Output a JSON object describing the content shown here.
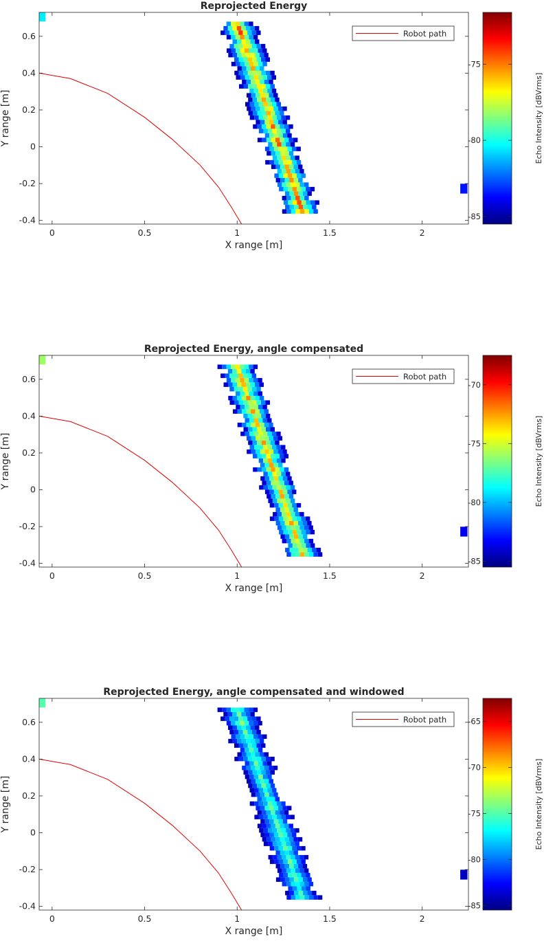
{
  "chart_data": [
    {
      "type": "heatmap",
      "title": "Reprojected Energy",
      "xlabel": "X range [m]",
      "ylabel": "Y range [m]",
      "xlim": [
        -0.07,
        2.25
      ],
      "ylim": [
        -0.42,
        0.73
      ],
      "xticks": [
        "0",
        "0.5",
        "1",
        "1.5",
        "2"
      ],
      "xtick_values": [
        0,
        0.5,
        1,
        1.5,
        2
      ],
      "yticks": [
        "-0.4",
        "-0.2",
        "0",
        "0.2",
        "0.4",
        "0.6"
      ],
      "ytick_values": [
        -0.4,
        -0.2,
        0,
        0.2,
        0.4,
        0.6
      ],
      "grid": false,
      "legend": {
        "entries": [
          "Robot path"
        ],
        "position": "top-right"
      },
      "colorbar": {
        "label": "Echo Intensity [dBVrms]",
        "range": [
          -85.5,
          -71.6
        ],
        "ticks": [
          "-75",
          "-80",
          "-85"
        ],
        "tick_values": [
          -75,
          -80,
          -85
        ]
      },
      "robot_path": {
        "x": [
          -0.07,
          0.1,
          0.3,
          0.5,
          0.65,
          0.8,
          0.9,
          0.97,
          1.03
        ],
        "y": [
          0.4,
          0.37,
          0.29,
          0.16,
          0.04,
          -0.1,
          -0.22,
          -0.33,
          -0.43
        ]
      },
      "ridge": {
        "y_top": 0.68,
        "y_bottom": -0.33,
        "x_top": 0.99,
        "x_bottom": 1.34,
        "peak": -74.0,
        "base": -85.0
      },
      "outliers": [
        {
          "x": -0.05,
          "y": 0.71,
          "value": -80.5
        },
        {
          "x": 2.23,
          "y": -0.225,
          "value": -83.5
        }
      ]
    },
    {
      "type": "heatmap",
      "title": "Reprojected Energy, angle compensated",
      "xlabel": "X range [m]",
      "ylabel": "Y range [m]",
      "xlim": [
        -0.07,
        2.25
      ],
      "ylim": [
        -0.42,
        0.73
      ],
      "xticks": [
        "0",
        "0.5",
        "1",
        "1.5",
        "2"
      ],
      "xtick_values": [
        0,
        0.5,
        1,
        1.5,
        2
      ],
      "yticks": [
        "-0.4",
        "-0.2",
        "0",
        "0.2",
        "0.4",
        "0.6"
      ],
      "ytick_values": [
        -0.4,
        -0.2,
        0,
        0.2,
        0.4,
        0.6
      ],
      "grid": false,
      "legend": {
        "entries": [
          "Robot path"
        ],
        "position": "top-right"
      },
      "colorbar": {
        "label": "Echo Intensity [dBVrms]",
        "range": [
          -85.5,
          -67.5
        ],
        "ticks": [
          "-70",
          "-75",
          "-80",
          "-85"
        ],
        "tick_values": [
          -70,
          -75,
          -80,
          -85
        ]
      },
      "robot_path": {
        "x": [
          -0.07,
          0.1,
          0.3,
          0.5,
          0.65,
          0.8,
          0.9,
          0.97,
          1.03
        ],
        "y": [
          0.4,
          0.37,
          0.29,
          0.16,
          0.04,
          -0.1,
          -0.22,
          -0.33,
          -0.43
        ]
      },
      "ridge": {
        "y_top": 0.68,
        "y_bottom": -0.33,
        "x_top": 0.99,
        "x_bottom": 1.34,
        "peak": -72.0,
        "base": -84.5
      },
      "outliers": [
        {
          "x": -0.05,
          "y": 0.71,
          "value": -76.0
        },
        {
          "x": 2.23,
          "y": -0.225,
          "value": -83.5
        }
      ]
    },
    {
      "type": "heatmap",
      "title": "Reprojected Energy, angle compensated and windowed",
      "xlabel": "X range [m]",
      "ylabel": "Y range [m]",
      "xlim": [
        -0.07,
        2.25
      ],
      "ylim": [
        -0.42,
        0.73
      ],
      "xticks": [
        "0",
        "0.5",
        "1",
        "1.5",
        "2"
      ],
      "xtick_values": [
        0,
        0.5,
        1,
        1.5,
        2
      ],
      "yticks": [
        "-0.4",
        "-0.2",
        "0",
        "0.2",
        "0.4",
        "0.6"
      ],
      "ytick_values": [
        -0.4,
        -0.2,
        0,
        0.2,
        0.4,
        0.6
      ],
      "grid": false,
      "legend": {
        "entries": [
          "Robot path"
        ],
        "position": "top-right"
      },
      "colorbar": {
        "label": "Echo Intensity [dBVrms]",
        "range": [
          -85.5,
          -62.5
        ],
        "ticks": [
          "-65",
          "-70",
          "-75",
          "-80",
          "-85"
        ],
        "tick_values": [
          -65,
          -70,
          -75,
          -80,
          -85
        ]
      },
      "robot_path": {
        "x": [
          -0.07,
          0.1,
          0.3,
          0.5,
          0.65,
          0.8,
          0.9,
          0.97,
          1.03
        ],
        "y": [
          0.4,
          0.37,
          0.29,
          0.16,
          0.04,
          -0.1,
          -0.22,
          -0.33,
          -0.43
        ]
      },
      "ridge": {
        "y_top": 0.68,
        "y_bottom": -0.33,
        "x_top": 0.99,
        "x_bottom": 1.34,
        "peak": -73.5,
        "base": -84.5
      },
      "outliers": [
        {
          "x": -0.05,
          "y": 0.71,
          "value": -75.0
        },
        {
          "x": 2.23,
          "y": -0.225,
          "value": -84.0
        }
      ]
    }
  ],
  "colors": {
    "path": "#e00000",
    "axis": "#262626",
    "background": "#ffffff"
  },
  "colormap": "jet"
}
